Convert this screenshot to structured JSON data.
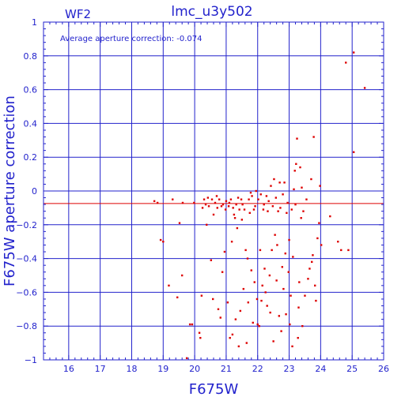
{
  "chart_data": {
    "type": "scatter",
    "title": "lmc_u3y502",
    "chip_label": "WF2",
    "annotation": "Average aperture correction: -0.074",
    "xlabel": "F675W",
    "ylabel": "F675W aperture correction",
    "xlim": [
      15.2,
      26.0
    ],
    "ylim": [
      -1.0,
      1.0
    ],
    "x_ticks": [
      16,
      17,
      18,
      19,
      20,
      21,
      22,
      23,
      24,
      25,
      26
    ],
    "y_ticks": [
      -1,
      -0.8,
      -0.6,
      -0.4,
      -0.2,
      0,
      0.2,
      0.4,
      0.6,
      0.8,
      1
    ],
    "y_tick_labels": [
      "−1",
      "−0.8",
      "−0.6",
      "−0.4",
      "−0.2",
      "0",
      "0.2",
      "0.4",
      "0.6",
      "0.8",
      "1"
    ],
    "grid": true,
    "average_line": -0.074,
    "colors": {
      "axes": "#2222cc",
      "points": "#dd0000",
      "average_line": "#dd0000"
    },
    "points": [
      [
        18.72,
        -0.06
      ],
      [
        18.82,
        -0.07
      ],
      [
        18.92,
        -0.29
      ],
      [
        19.0,
        -0.3
      ],
      [
        19.18,
        -0.56
      ],
      [
        19.3,
        -0.05
      ],
      [
        19.45,
        -0.63
      ],
      [
        19.52,
        -0.19
      ],
      [
        19.6,
        -0.5
      ],
      [
        19.62,
        -0.07
      ],
      [
        19.75,
        -0.99
      ],
      [
        19.85,
        -0.79
      ],
      [
        19.92,
        -0.79
      ],
      [
        19.98,
        -0.07
      ],
      [
        20.15,
        -0.84
      ],
      [
        20.18,
        -0.87
      ],
      [
        20.22,
        -0.62
      ],
      [
        20.25,
        -0.1
      ],
      [
        20.3,
        -0.05
      ],
      [
        20.35,
        -0.08
      ],
      [
        20.38,
        -0.2
      ],
      [
        20.42,
        -0.04
      ],
      [
        20.45,
        -0.09
      ],
      [
        20.52,
        -0.41
      ],
      [
        20.55,
        -0.05
      ],
      [
        20.58,
        -0.64
      ],
      [
        20.6,
        -0.14
      ],
      [
        20.65,
        -0.07
      ],
      [
        20.7,
        -0.03
      ],
      [
        20.72,
        -0.1
      ],
      [
        20.75,
        -0.7
      ],
      [
        20.78,
        -0.05
      ],
      [
        20.82,
        -0.75
      ],
      [
        20.85,
        -0.09
      ],
      [
        20.88,
        -0.48
      ],
      [
        20.9,
        -0.08
      ],
      [
        20.95,
        -0.36
      ],
      [
        20.98,
        -0.11
      ],
      [
        21.0,
        -0.06
      ],
      [
        21.05,
        -0.66
      ],
      [
        21.08,
        -0.09
      ],
      [
        21.1,
        -0.07
      ],
      [
        21.12,
        -0.87
      ],
      [
        21.15,
        -0.05
      ],
      [
        21.18,
        -0.3
      ],
      [
        21.2,
        -0.85
      ],
      [
        21.22,
        -0.1
      ],
      [
        21.25,
        -0.14
      ],
      [
        21.28,
        -0.16
      ],
      [
        21.3,
        -0.76
      ],
      [
        21.32,
        -0.08
      ],
      [
        21.35,
        -0.22
      ],
      [
        21.38,
        -0.04
      ],
      [
        21.4,
        -0.92
      ],
      [
        21.42,
        -0.11
      ],
      [
        21.45,
        -0.71
      ],
      [
        21.48,
        -0.05
      ],
      [
        21.5,
        -0.17
      ],
      [
        21.52,
        -0.08
      ],
      [
        21.55,
        -0.58
      ],
      [
        21.58,
        -0.11
      ],
      [
        21.62,
        -0.35
      ],
      [
        21.65,
        -0.9
      ],
      [
        21.68,
        -0.4
      ],
      [
        21.7,
        -0.66
      ],
      [
        21.72,
        -0.05
      ],
      [
        21.75,
        -0.13
      ],
      [
        21.78,
        -0.01
      ],
      [
        21.8,
        -0.47
      ],
      [
        21.82,
        -0.03
      ],
      [
        21.85,
        -0.78
      ],
      [
        21.88,
        -0.11
      ],
      [
        21.9,
        -0.54
      ],
      [
        21.92,
        -0.09
      ],
      [
        21.95,
        0.0
      ],
      [
        21.98,
        -0.64
      ],
      [
        22.0,
        -0.79
      ],
      [
        22.02,
        -0.05
      ],
      [
        22.05,
        -0.8
      ],
      [
        22.08,
        -0.35
      ],
      [
        22.1,
        -0.02
      ],
      [
        22.12,
        -0.65
      ],
      [
        22.15,
        -0.56
      ],
      [
        22.18,
        -0.11
      ],
      [
        22.2,
        -0.08
      ],
      [
        22.22,
        -0.46
      ],
      [
        22.25,
        -0.6
      ],
      [
        22.28,
        -0.03
      ],
      [
        22.3,
        -0.68
      ],
      [
        22.32,
        -0.12
      ],
      [
        22.35,
        -0.06
      ],
      [
        22.38,
        -0.5
      ],
      [
        22.4,
        -0.72
      ],
      [
        22.42,
        0.03
      ],
      [
        22.45,
        -0.35
      ],
      [
        22.48,
        -0.09
      ],
      [
        22.5,
        -0.89
      ],
      [
        22.52,
        0.07
      ],
      [
        22.55,
        -0.26
      ],
      [
        22.58,
        -0.04
      ],
      [
        22.6,
        -0.53
      ],
      [
        22.62,
        -0.32
      ],
      [
        22.65,
        -0.12
      ],
      [
        22.68,
        -0.74
      ],
      [
        22.7,
        0.05
      ],
      [
        22.72,
        -0.1
      ],
      [
        22.75,
        -0.83
      ],
      [
        22.78,
        -0.45
      ],
      [
        22.8,
        -0.02
      ],
      [
        22.82,
        -0.58
      ],
      [
        22.85,
        0.05
      ],
      [
        22.88,
        -0.37
      ],
      [
        22.9,
        -0.73
      ],
      [
        22.92,
        -0.13
      ],
      [
        22.95,
        -0.07
      ],
      [
        22.98,
        -0.48
      ],
      [
        23.0,
        -0.29
      ],
      [
        23.02,
        -0.79
      ],
      [
        23.05,
        -0.62
      ],
      [
        23.08,
        -0.11
      ],
      [
        23.1,
        -0.92
      ],
      [
        23.12,
        -0.39
      ],
      [
        23.15,
        0.01
      ],
      [
        23.18,
        0.12
      ],
      [
        23.2,
        -0.08
      ],
      [
        23.22,
        0.16
      ],
      [
        23.25,
        0.31
      ],
      [
        23.28,
        -0.87
      ],
      [
        23.3,
        -0.69
      ],
      [
        23.32,
        -0.54
      ],
      [
        23.35,
        0.14
      ],
      [
        23.38,
        -0.16
      ],
      [
        23.4,
        0.02
      ],
      [
        23.42,
        -0.8
      ],
      [
        23.45,
        -0.12
      ],
      [
        23.5,
        -0.62
      ],
      [
        23.55,
        -0.05
      ],
      [
        23.6,
        -0.52
      ],
      [
        23.65,
        -0.46
      ],
      [
        23.7,
        0.07
      ],
      [
        23.72,
        -0.42
      ],
      [
        23.75,
        -0.38
      ],
      [
        23.78,
        0.32
      ],
      [
        23.82,
        -0.56
      ],
      [
        23.85,
        -0.65
      ],
      [
        23.9,
        -0.28
      ],
      [
        23.95,
        -0.19
      ],
      [
        23.98,
        0.03
      ],
      [
        24.02,
        -0.32
      ],
      [
        24.3,
        -0.15
      ],
      [
        24.55,
        -0.3
      ],
      [
        24.65,
        -0.35
      ],
      [
        24.8,
        0.76
      ],
      [
        24.88,
        -0.35
      ],
      [
        25.05,
        0.82
      ],
      [
        25.05,
        0.23
      ],
      [
        25.4,
        0.61
      ]
    ]
  }
}
